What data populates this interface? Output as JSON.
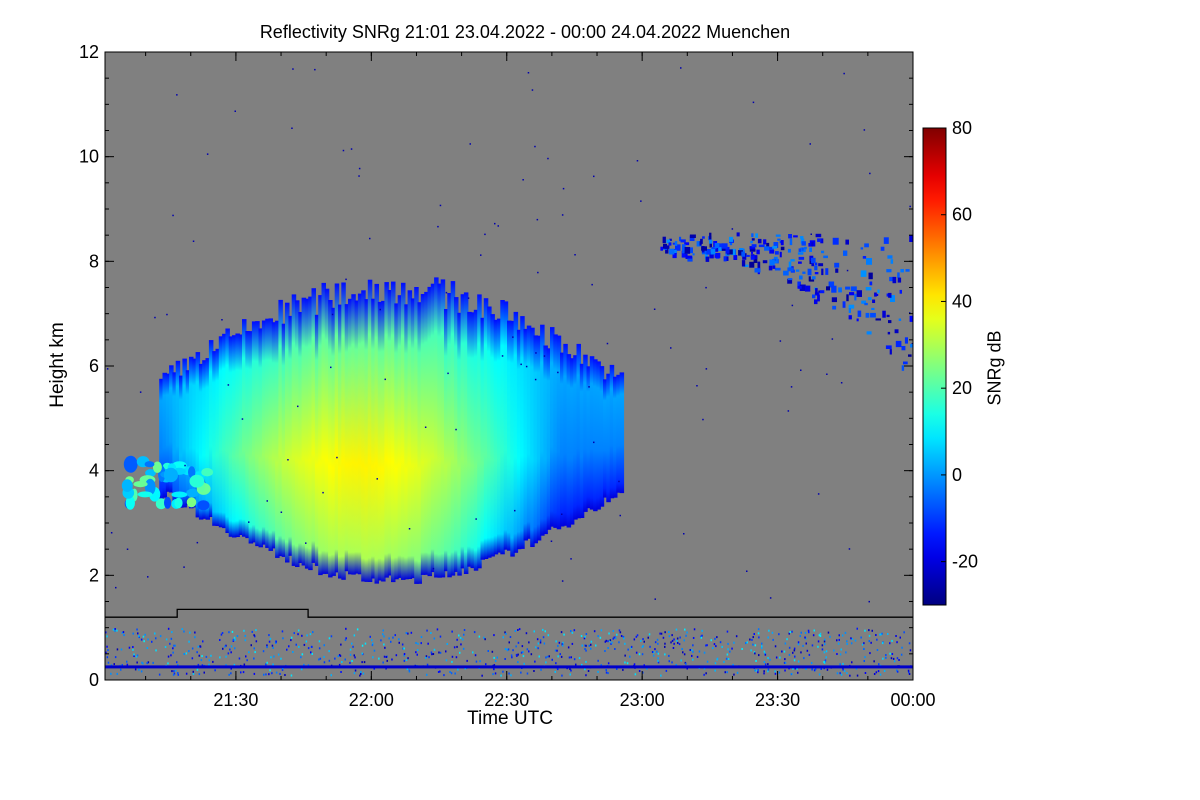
{
  "chart_data": {
    "type": "heatmap",
    "title": "Reflectivity SNRg   21:01 23.04.2022 - 00:00 24.04.2022 Muenchen",
    "xlabel": "Time UTC",
    "ylabel": "Height km",
    "colorbar_label": "SNRg dB",
    "x_range": [
      "21:01",
      "00:00"
    ],
    "x_ticks": [
      "21:30",
      "22:00",
      "22:30",
      "23:00",
      "23:30",
      "00:00"
    ],
    "y_range": [
      0,
      12
    ],
    "y_ticks": [
      "0",
      "2",
      "4",
      "6",
      "8",
      "10",
      "12"
    ],
    "colorbar_range": [
      -30,
      80
    ],
    "colorbar_ticks": [
      "-20",
      "0",
      "20",
      "40",
      "60",
      "80"
    ],
    "colormap": "jet",
    "background_color": "#808080",
    "regions": [
      {
        "feature": "main cloud",
        "time_start": "21:13",
        "time_end": "22:55",
        "height_km": [
          1.8,
          7.8
        ],
        "peak_snr_db": 40
      },
      {
        "feature": "upper cloud layer",
        "time_start": "23:04",
        "time_end": "00:00",
        "height_km": [
          5.8,
          8.6
        ],
        "peak_snr_db": 0
      },
      {
        "feature": "small low patches",
        "time_start": "21:01",
        "time_end": "21:25",
        "height_km": [
          3.3,
          4.2
        ],
        "peak_snr_db": 25
      },
      {
        "feature": "near-surface clutter",
        "time_start": "21:01",
        "time_end": "00:00",
        "height_km": [
          0.1,
          1.0
        ],
        "peak_snr_db": 10
      }
    ],
    "boundary_line_km": [
      {
        "time_start": "21:01",
        "time_end": "21:17",
        "height_km": 1.2
      },
      {
        "time_start": "21:17",
        "time_end": "21:46",
        "height_km": 1.35
      },
      {
        "time_start": "21:46",
        "time_end": "00:00",
        "height_km": 1.2
      }
    ],
    "surface_echo_height_km": 0.25
  }
}
